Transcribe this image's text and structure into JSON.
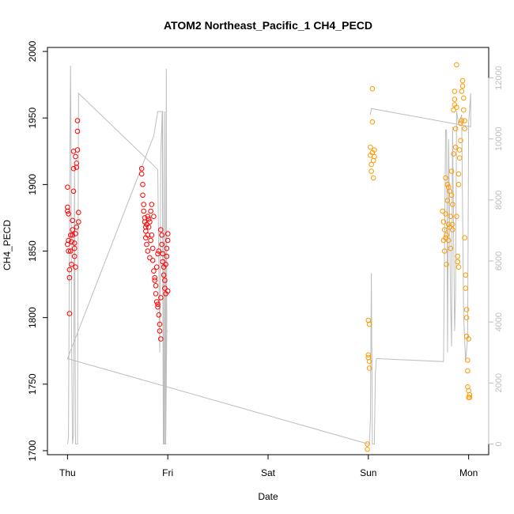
{
  "chart_data": {
    "type": "scatter",
    "title": "ATOM2 Northeast_Pacific_1 CH4_PECD",
    "xlabel": "Date",
    "ylabel": "CH4_PECD",
    "x_ticks": [
      "Thu",
      "Fri",
      "Sat",
      "Sun",
      "Mon"
    ],
    "x_tick_values": [
      0,
      1,
      2,
      3,
      4
    ],
    "xlim": [
      -0.2,
      4.2
    ],
    "ylim": [
      1697,
      2003
    ],
    "y_ticks": [
      1700,
      1750,
      1800,
      1850,
      1900,
      1950,
      2000
    ],
    "y2_ticks": [
      0,
      2000,
      4000,
      6000,
      8000,
      10000,
      12000
    ],
    "y2lim": [
      -350,
      13000
    ],
    "grid": false,
    "colors": {
      "series_red": "#ff0000",
      "series_orange": "#ff9900",
      "altitude_line": "#bdbdbd"
    },
    "series": [
      {
        "color": "#ff0000",
        "marker": "open-circle",
        "points": [
          [
            0.0,
            1898
          ],
          [
            0.0,
            1880
          ],
          [
            0.0,
            1883
          ],
          [
            0.01,
            1878
          ],
          [
            0.01,
            1858
          ],
          [
            0.0,
            1855
          ],
          [
            0.01,
            1850
          ],
          [
            0.02,
            1830
          ],
          [
            0.02,
            1803
          ],
          [
            0.02,
            1836
          ],
          [
            0.03,
            1862
          ],
          [
            0.03,
            1850
          ],
          [
            0.04,
            1840
          ],
          [
            0.04,
            1857
          ],
          [
            0.05,
            1862
          ],
          [
            0.05,
            1866
          ],
          [
            0.05,
            1873
          ],
          [
            0.06,
            1925
          ],
          [
            0.06,
            1912
          ],
          [
            0.06,
            1895
          ],
          [
            0.07,
            1852
          ],
          [
            0.07,
            1846
          ],
          [
            0.07,
            1856
          ],
          [
            0.08,
            1863
          ],
          [
            0.08,
            1838
          ],
          [
            0.08,
            1921
          ],
          [
            0.09,
            1916
          ],
          [
            0.09,
            1913
          ],
          [
            0.09,
            1868
          ],
          [
            0.1,
            1926
          ],
          [
            0.1,
            1940
          ],
          [
            0.1,
            1948
          ],
          [
            0.11,
            1879
          ],
          [
            0.11,
            1872
          ],
          [
            0.74,
            1912
          ],
          [
            0.74,
            1908
          ],
          [
            0.75,
            1900
          ],
          [
            0.75,
            1892
          ],
          [
            0.76,
            1885
          ],
          [
            0.76,
            1880
          ],
          [
            0.77,
            1875
          ],
          [
            0.77,
            1872
          ],
          [
            0.78,
            1868
          ],
          [
            0.78,
            1865
          ],
          [
            0.78,
            1860
          ],
          [
            0.79,
            1870
          ],
          [
            0.79,
            1855
          ],
          [
            0.8,
            1876
          ],
          [
            0.8,
            1862
          ],
          [
            0.8,
            1850
          ],
          [
            0.81,
            1874
          ],
          [
            0.81,
            1868
          ],
          [
            0.82,
            1845
          ],
          [
            0.82,
            1872
          ],
          [
            0.83,
            1880
          ],
          [
            0.83,
            1858
          ],
          [
            0.84,
            1885
          ],
          [
            0.84,
            1862
          ],
          [
            0.85,
            1852
          ],
          [
            0.85,
            1843
          ],
          [
            0.86,
            1876
          ],
          [
            0.86,
            1835
          ],
          [
            0.87,
            1830
          ],
          [
            0.87,
            1828
          ],
          [
            0.88,
            1824
          ],
          [
            0.88,
            1818
          ],
          [
            0.89,
            1838
          ],
          [
            0.89,
            1812
          ],
          [
            0.9,
            1848
          ],
          [
            0.9,
            1808
          ],
          [
            0.91,
            1850
          ],
          [
            0.91,
            1802
          ],
          [
            0.92,
            1795
          ],
          [
            0.92,
            1790
          ],
          [
            0.93,
            1784
          ],
          [
            0.93,
            1866
          ],
          [
            0.94,
            1862
          ],
          [
            0.94,
            1855
          ],
          [
            0.95,
            1848
          ],
          [
            0.95,
            1842
          ],
          [
            0.96,
            1838
          ],
          [
            0.96,
            1832
          ],
          [
            0.97,
            1828
          ],
          [
            0.97,
            1822
          ],
          [
            0.98,
            1818
          ],
          [
            0.98,
            1840
          ],
          [
            0.99,
            1846
          ],
          [
            0.99,
            1852
          ],
          [
            1.0,
            1858
          ],
          [
            1.0,
            1863
          ],
          [
            1.0,
            1820
          ],
          [
            0.9,
            1810
          ],
          [
            0.93,
            1815
          ]
        ]
      },
      {
        "color": "#ff9900",
        "marker": "open-circle",
        "points": [
          [
            2.99,
            1705
          ],
          [
            2.99,
            1701
          ],
          [
            3.0,
            1772
          ],
          [
            3.0,
            1770
          ],
          [
            3.0,
            1798
          ],
          [
            3.01,
            1795
          ],
          [
            3.01,
            1762
          ],
          [
            3.01,
            1767
          ],
          [
            3.02,
            1928
          ],
          [
            3.02,
            1922
          ],
          [
            3.03,
            1910
          ],
          [
            3.03,
            1915
          ],
          [
            3.04,
            1947
          ],
          [
            3.04,
            1924
          ],
          [
            3.05,
            1918
          ],
          [
            3.05,
            1905
          ],
          [
            3.06,
            1921
          ],
          [
            3.06,
            1926
          ],
          [
            3.04,
            1972
          ],
          [
            3.74,
            1880
          ],
          [
            3.75,
            1872
          ],
          [
            3.75,
            1858
          ],
          [
            3.76,
            1866
          ],
          [
            3.76,
            1850
          ],
          [
            3.77,
            1905
          ],
          [
            3.77,
            1878
          ],
          [
            3.78,
            1862
          ],
          [
            3.78,
            1840
          ],
          [
            3.79,
            1900
          ],
          [
            3.79,
            1888
          ],
          [
            3.8,
            1870
          ],
          [
            3.8,
            1858
          ],
          [
            3.81,
            1895
          ],
          [
            3.81,
            1868
          ],
          [
            3.82,
            1852
          ],
          [
            3.82,
            1876
          ],
          [
            3.83,
            1910
          ],
          [
            3.83,
            1892
          ],
          [
            3.84,
            1885
          ],
          [
            3.84,
            1866
          ],
          [
            3.85,
            1923
          ],
          [
            3.85,
            1956
          ],
          [
            3.86,
            1960
          ],
          [
            3.86,
            1970
          ],
          [
            3.86,
            1964
          ],
          [
            3.87,
            1942
          ],
          [
            3.87,
            1928
          ],
          [
            3.88,
            1990
          ],
          [
            3.88,
            1958
          ],
          [
            3.88,
            1876
          ],
          [
            3.89,
            1846
          ],
          [
            3.89,
            1842
          ],
          [
            3.9,
            1838
          ],
          [
            3.9,
            1900
          ],
          [
            3.91,
            1920
          ],
          [
            3.91,
            1926
          ],
          [
            3.92,
            1933
          ],
          [
            3.92,
            1946
          ],
          [
            3.93,
            1948
          ],
          [
            3.93,
            1970
          ],
          [
            3.94,
            1974
          ],
          [
            3.94,
            1978
          ],
          [
            3.95,
            1965
          ],
          [
            3.95,
            1956
          ],
          [
            3.96,
            1948
          ],
          [
            3.96,
            1942
          ],
          [
            3.96,
            1860
          ],
          [
            3.97,
            1832
          ],
          [
            3.97,
            1822
          ],
          [
            3.98,
            1806
          ],
          [
            3.98,
            1800
          ],
          [
            3.98,
            1786
          ],
          [
            3.99,
            1768
          ],
          [
            3.99,
            1760
          ],
          [
            3.99,
            1748
          ],
          [
            4.0,
            1745
          ],
          [
            4.0,
            1740
          ],
          [
            4.0,
            1784
          ],
          [
            4.01,
            1742
          ],
          [
            4.01,
            1740
          ],
          [
            3.9,
            1908
          ],
          [
            3.84,
            1870
          ],
          [
            3.77,
            1860
          ],
          [
            3.8,
            1898
          ]
        ]
      }
    ],
    "altitude_line": {
      "color": "#bdbdbd",
      "x": [
        0.0,
        0.01,
        0.02,
        0.03,
        0.035,
        0.04,
        0.05,
        0.06,
        0.07,
        0.08,
        0.1,
        0.11,
        0.9,
        0.92,
        0.93,
        0.945,
        0.955,
        0.965,
        0.97,
        0.975,
        0.98,
        0.985,
        0.99,
        1.0,
        0.99,
        0.98,
        0.97,
        0.96,
        0.95,
        0.9,
        0.87,
        0.86,
        0.0,
        0.0,
        3.0,
        3.01,
        3.02,
        3.03,
        3.04,
        3.05,
        3.06,
        3.07,
        3.08,
        3.09,
        3.75,
        3.77,
        3.78,
        3.79,
        3.8,
        3.82,
        3.83,
        3.84,
        3.85,
        3.86,
        3.87,
        3.88,
        3.9,
        3.93,
        3.95,
        3.97,
        3.99,
        4.0,
        4.01,
        4.02,
        4.02,
        3.03,
        3.02
      ],
      "y": [
        0,
        200,
        7500,
        12400,
        10000,
        4000,
        0,
        300,
        9000,
        0,
        0,
        11500,
        9000,
        3000,
        9500,
        10900,
        0,
        0,
        10900,
        0,
        0,
        12300,
        3700,
        3700,
        3700,
        0,
        0,
        0,
        10900,
        10900,
        10300,
        10100,
        2800,
        2800,
        0,
        0,
        800,
        5600,
        0,
        0,
        0,
        2300,
        2800,
        2800,
        2700,
        10300,
        10300,
        3000,
        10000,
        4700,
        3200,
        10400,
        7000,
        3700,
        4900,
        10900,
        10500,
        10800,
        4200,
        2700,
        3500,
        10500,
        11000,
        11500,
        10400,
        11000,
        10800
      ]
    }
  }
}
